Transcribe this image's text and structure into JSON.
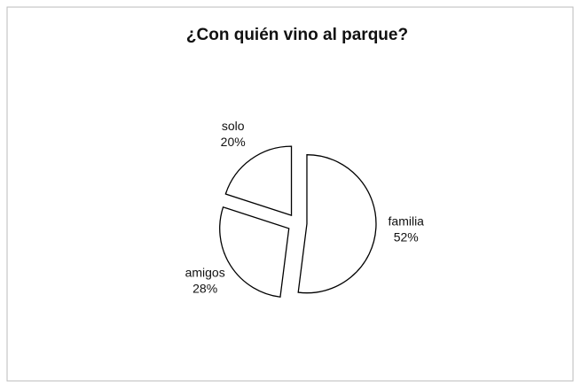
{
  "chart_data": {
    "type": "pie",
    "title": "¿Con quién vino al parque?",
    "categories": [
      "familia",
      "amigos",
      "solo"
    ],
    "values": [
      52,
      28,
      20
    ],
    "value_labels": [
      "52%",
      "28%",
      "20%"
    ],
    "color": "#ffffff",
    "stroke": "#000000"
  }
}
